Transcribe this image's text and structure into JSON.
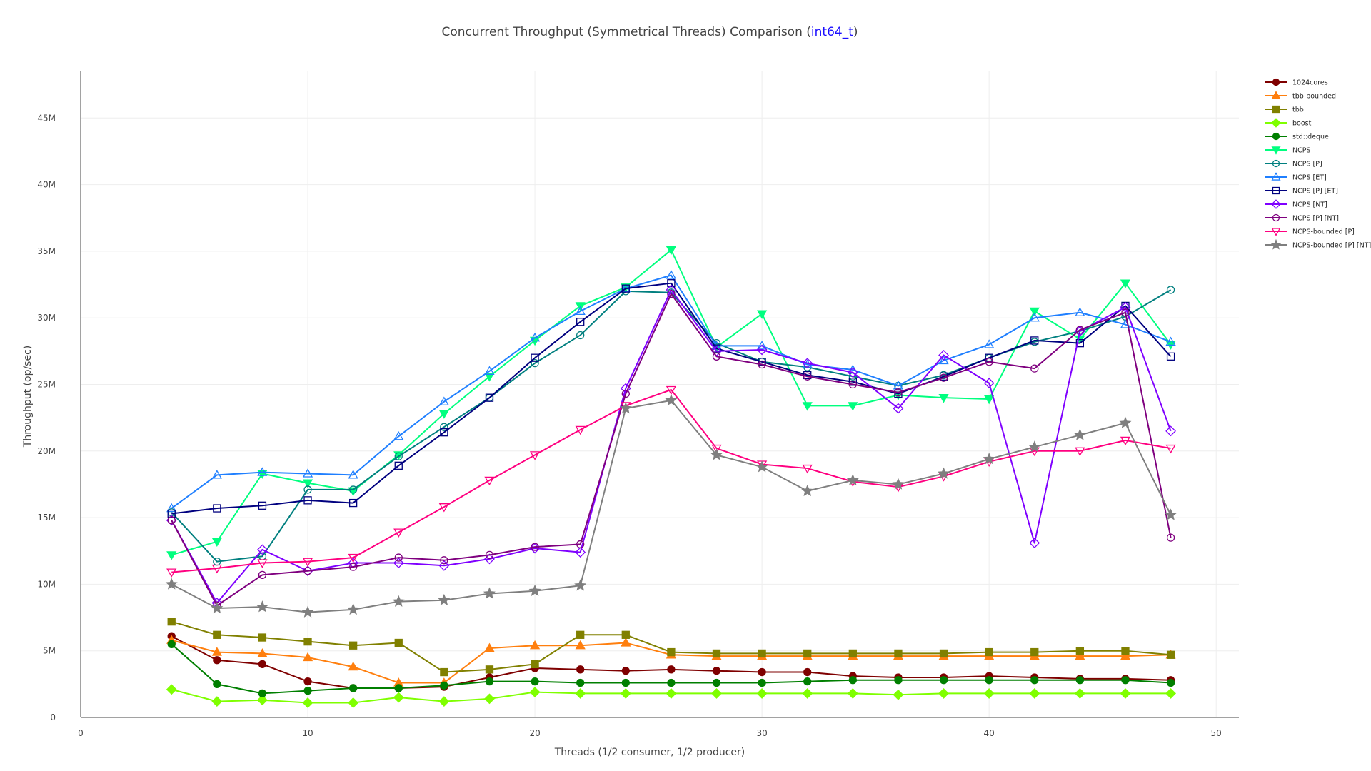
{
  "chart_data": {
    "type": "line",
    "title": {
      "prefix": "Concurrent Throughput (Symmetrical Threads) Comparison (",
      "link": "int64_t",
      "suffix": ")"
    },
    "xlabel": "Threads (1/2 consumer, 1/2 producer)",
    "ylabel": "Throughput (op/sec)",
    "xlim": [
      0,
      51
    ],
    "ylim": [
      0,
      48500000
    ],
    "grid": true,
    "legend_position": "top-right",
    "x_ticks": [
      {
        "value": 0,
        "label": "0"
      },
      {
        "value": 10,
        "label": "10"
      },
      {
        "value": 20,
        "label": "20"
      },
      {
        "value": 30,
        "label": "30"
      },
      {
        "value": 40,
        "label": "40"
      },
      {
        "value": 50,
        "label": "50"
      }
    ],
    "y_ticks": [
      {
        "value": 0,
        "label": "0"
      },
      {
        "value": 5000000,
        "label": "5M"
      },
      {
        "value": 10000000,
        "label": "10M"
      },
      {
        "value": 15000000,
        "label": "15M"
      },
      {
        "value": 20000000,
        "label": "20M"
      },
      {
        "value": 25000000,
        "label": "25M"
      },
      {
        "value": 30000000,
        "label": "30M"
      },
      {
        "value": 35000000,
        "label": "35M"
      },
      {
        "value": 40000000,
        "label": "40M"
      },
      {
        "value": 45000000,
        "label": "45M"
      }
    ],
    "x": [
      4,
      6,
      8,
      10,
      12,
      14,
      16,
      18,
      20,
      22,
      24,
      26,
      28,
      30,
      32,
      34,
      36,
      38,
      40,
      42,
      44,
      46,
      48
    ],
    "series": [
      {
        "name": "1024cores",
        "color": "#7f0000",
        "marker": "circle",
        "filled": true,
        "values": [
          6100000,
          4300000,
          4000000,
          2700000,
          2200000,
          2200000,
          2300000,
          3000000,
          3700000,
          3600000,
          3500000,
          3600000,
          3500000,
          3400000,
          3400000,
          3100000,
          3000000,
          3000000,
          3100000,
          3000000,
          2900000,
          2900000,
          2800000
        ]
      },
      {
        "name": "tbb-bounded",
        "color": "#ff7f0e",
        "marker": "triangle-up",
        "filled": true,
        "values": [
          5800000,
          4900000,
          4800000,
          4500000,
          3800000,
          2600000,
          2600000,
          5200000,
          5400000,
          5400000,
          5600000,
          4700000,
          4600000,
          4600000,
          4600000,
          4600000,
          4600000,
          4600000,
          4600000,
          4600000,
          4600000,
          4600000,
          4700000
        ]
      },
      {
        "name": "tbb",
        "color": "#808000",
        "marker": "square",
        "filled": true,
        "values": [
          7200000,
          6200000,
          6000000,
          5700000,
          5400000,
          5600000,
          3400000,
          3600000,
          4000000,
          6200000,
          6200000,
          4900000,
          4800000,
          4800000,
          4800000,
          4800000,
          4800000,
          4800000,
          4900000,
          4900000,
          5000000,
          5000000,
          4700000
        ]
      },
      {
        "name": "boost",
        "color": "#7fff00",
        "marker": "diamond",
        "filled": true,
        "values": [
          2100000,
          1200000,
          1300000,
          1100000,
          1100000,
          1500000,
          1200000,
          1400000,
          1900000,
          1800000,
          1800000,
          1800000,
          1800000,
          1800000,
          1800000,
          1800000,
          1700000,
          1800000,
          1800000,
          1800000,
          1800000,
          1800000,
          1800000
        ]
      },
      {
        "name": "std::deque",
        "color": "#007f00",
        "marker": "circle",
        "filled": true,
        "values": [
          5500000,
          2500000,
          1800000,
          2000000,
          2200000,
          2200000,
          2400000,
          2700000,
          2700000,
          2600000,
          2600000,
          2600000,
          2600000,
          2600000,
          2700000,
          2800000,
          2800000,
          2800000,
          2800000,
          2800000,
          2800000,
          2800000,
          2600000
        ]
      },
      {
        "name": "NCPS",
        "color": "#00ff7f",
        "marker": "triangle-down",
        "filled": true,
        "values": [
          12200000,
          13200000,
          18300000,
          17600000,
          17000000,
          19700000,
          22800000,
          25600000,
          28300000,
          30900000,
          32300000,
          35100000,
          27800000,
          30300000,
          23400000,
          23400000,
          24200000,
          24000000,
          23900000,
          30500000,
          28400000,
          32600000,
          28000000
        ]
      },
      {
        "name": "NCPS [P]",
        "color": "#007f7f",
        "marker": "circle",
        "filled": false,
        "values": [
          15400000,
          11700000,
          12100000,
          17100000,
          17100000,
          19600000,
          21800000,
          24000000,
          26600000,
          28700000,
          32000000,
          31900000,
          28100000,
          26700000,
          26300000,
          25600000,
          24900000,
          25700000,
          27000000,
          28200000,
          29000000,
          30100000,
          32100000
        ]
      },
      {
        "name": "NCPS [ET]",
        "color": "#1f7fff",
        "marker": "triangle-up",
        "filled": false,
        "values": [
          15700000,
          18200000,
          18400000,
          18300000,
          18200000,
          21100000,
          23700000,
          26000000,
          28500000,
          30500000,
          32200000,
          33200000,
          27900000,
          27900000,
          26500000,
          26100000,
          24900000,
          26800000,
          28000000,
          30000000,
          30400000,
          29500000,
          28200000
        ]
      },
      {
        "name": "NCPS [P] [ET]",
        "color": "#00007f",
        "marker": "square",
        "filled": false,
        "values": [
          15300000,
          15700000,
          15900000,
          16300000,
          16100000,
          18900000,
          21400000,
          24000000,
          27000000,
          29700000,
          32200000,
          32600000,
          27700000,
          26700000,
          25700000,
          25200000,
          24300000,
          25600000,
          27000000,
          28300000,
          28100000,
          30900000,
          27100000
        ]
      },
      {
        "name": "NCPS [NT]",
        "color": "#7f00ff",
        "marker": "diamond",
        "filled": false,
        "values": [
          14800000,
          8600000,
          12600000,
          11000000,
          11600000,
          11600000,
          11400000,
          11900000,
          12700000,
          12400000,
          24700000,
          32100000,
          27500000,
          27600000,
          26600000,
          25900000,
          23200000,
          27200000,
          25100000,
          13100000,
          29000000,
          30800000,
          21500000
        ]
      },
      {
        "name": "NCPS [P] [NT]",
        "color": "#7f007f",
        "marker": "circle",
        "filled": false,
        "values": [
          14800000,
          8400000,
          10700000,
          11000000,
          11300000,
          12000000,
          11800000,
          12200000,
          12800000,
          13000000,
          24300000,
          31800000,
          27100000,
          26500000,
          25600000,
          25000000,
          24400000,
          25500000,
          26700000,
          26200000,
          29100000,
          30400000,
          13500000
        ]
      },
      {
        "name": "NCPS-bounded [P]",
        "color": "#ff0080",
        "marker": "triangle-down",
        "filled": false,
        "values": [
          10900000,
          11200000,
          11600000,
          11700000,
          12000000,
          13900000,
          15800000,
          17800000,
          19700000,
          21600000,
          23400000,
          24600000,
          20200000,
          19000000,
          18700000,
          17700000,
          17300000,
          18100000,
          19200000,
          20000000,
          20000000,
          20800000,
          20200000
        ]
      },
      {
        "name": "NCPS-bounded [P] [NT]",
        "color": "#7f7f7f",
        "marker": "star",
        "filled": true,
        "values": [
          10000000,
          8200000,
          8300000,
          7900000,
          8100000,
          8700000,
          8800000,
          9300000,
          9500000,
          9900000,
          23200000,
          23800000,
          19700000,
          18800000,
          17000000,
          17800000,
          17500000,
          18300000,
          19400000,
          20300000,
          21200000,
          22100000,
          15200000
        ]
      }
    ]
  }
}
